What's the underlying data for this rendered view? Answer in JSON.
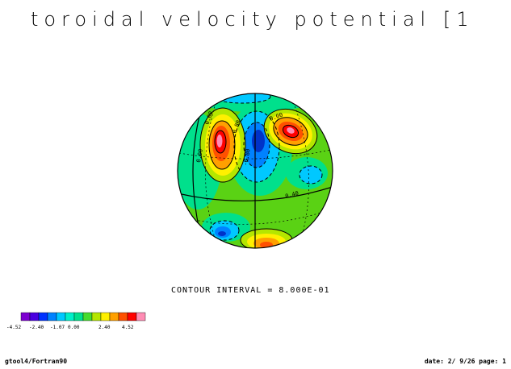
{
  "title": "toroidal velocity potential [1",
  "contour_text": "CONTOUR INTERVAL = 8.000E-01",
  "footer_left": "gtool4/Fortran90",
  "footer_right": "date: 2/ 9/26 page: 1",
  "colorbar": {
    "tick_labels": [
      "-4.52",
      "-2.40",
      "-1.07",
      "0.00",
      "2.40",
      "4.52"
    ],
    "colors": [
      "#7d00d0",
      "#4a00e0",
      "#0032ff",
      "#0082ff",
      "#00c8ff",
      "#00f0c8",
      "#00e08c",
      "#46dc2d",
      "#b4e600",
      "#fff000",
      "#ffa000",
      "#ff5000",
      "#ff0000",
      "#ff8cb4"
    ]
  },
  "contour_labels": [
    "0.00",
    "0.80",
    "-0.80",
    "0.40",
    "0.00",
    "0.00"
  ],
  "colors": {
    "background_field": "#5ad214",
    "positive_core": "#ff1e1e",
    "negative_core": "#0032c8"
  }
}
